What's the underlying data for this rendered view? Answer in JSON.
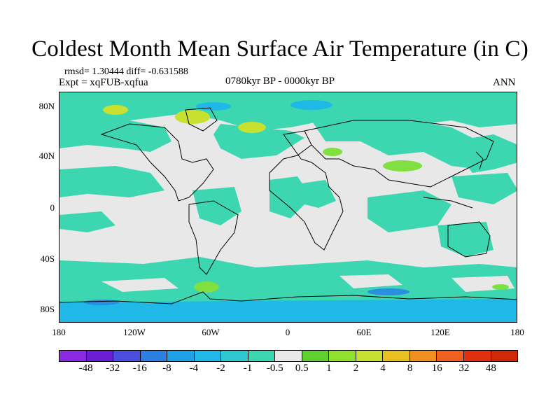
{
  "title": "Coldest Month Mean Surface Air Temperature (in C)",
  "stats_line": "rmsd= 1.30444  diff= -0.631588",
  "experiment_line": "Expt = xqFUB-xqfua",
  "period": "0780kyr BP - 0000kyr BP",
  "season": "ANN",
  "colors": {
    "land_neutral": "#e8e8e8",
    "ocean_cool": "#3cd7b0",
    "cool_medium": "#20b8e6",
    "cool_strong": "#2a8fe0",
    "warm_light": "#7fe040",
    "warm_medium": "#c8e030"
  },
  "chart_data": {
    "type": "heatmap",
    "title": "Coldest Month Mean Surface Air Temperature (in C)",
    "x_ticks": [
      "180",
      "120W",
      "60W",
      "0",
      "60E",
      "120E",
      "180"
    ],
    "y_ticks": [
      "80N",
      "40N",
      "0",
      "40S",
      "80S"
    ],
    "colorbar": {
      "labels": [
        "-48",
        "-32",
        "-16",
        "-8",
        "-4",
        "-2",
        "-1",
        "-0.5",
        "0.5",
        "1",
        "2",
        "4",
        "8",
        "16",
        "32",
        "48"
      ],
      "colors": [
        "#8a2be2",
        "#6a1fd6",
        "#4a4fe0",
        "#2a7fe0",
        "#209fe6",
        "#20b8e6",
        "#30c8d0",
        "#3cd7b0",
        "#e8e8e8",
        "#60d030",
        "#90e030",
        "#c8e030",
        "#e8c020",
        "#f09020",
        "#f06020",
        "#e03010",
        "#d02808"
      ]
    }
  }
}
